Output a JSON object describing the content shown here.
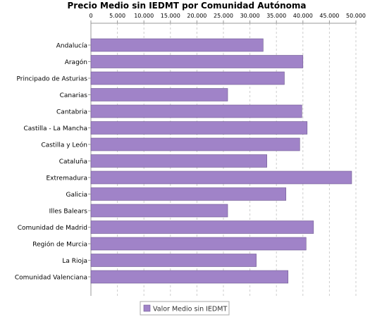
{
  "chart_data": {
    "type": "bar",
    "orientation": "horizontal",
    "title": "Precio Medio sin IEDMT por Comunidad Autónoma",
    "xlabel": "",
    "ylabel": "",
    "xlim": [
      0,
      50000
    ],
    "x_ticks": [
      "0",
      "5.000",
      "10.000",
      "15.000",
      "20.000",
      "25.000",
      "30.000",
      "35.000",
      "40.000",
      "45.000",
      "50.000"
    ],
    "x_tick_values": [
      0,
      5000,
      10000,
      15000,
      20000,
      25000,
      30000,
      35000,
      40000,
      45000,
      50000
    ],
    "x_axis_position": "top",
    "grid": true,
    "legend_position": "bottom",
    "categories": [
      "Andalucía",
      "Aragón",
      "Principado de Asturias",
      "Canarias",
      "Cantabria",
      "Castilla - La Mancha",
      "Castilla y León",
      "Cataluña",
      "Extremadura",
      "Galicia",
      "Illes Balears",
      "Comunidad de Madrid",
      "Región de Murcia",
      "La Rioja",
      "Comunidad Valenciana"
    ],
    "series": [
      {
        "name": "Valor Medio sin IEDMT",
        "color": "#a083c8",
        "values": [
          32500,
          40000,
          36500,
          25800,
          39800,
          40800,
          39400,
          33200,
          49200,
          36800,
          25800,
          42000,
          40600,
          31200,
          37200
        ]
      }
    ]
  },
  "colors": {
    "bar_fill": "#a083c8",
    "bar_stroke": "#6f5a91",
    "axis": "#999999",
    "grid": "#cccccc",
    "legend_border": "#aaaaaa"
  }
}
